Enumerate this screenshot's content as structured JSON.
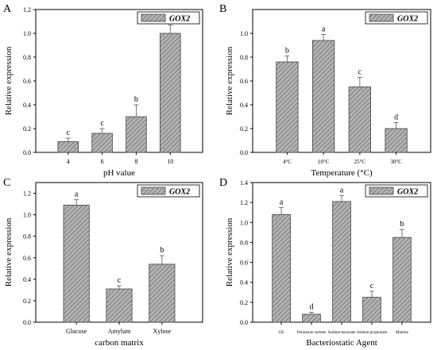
{
  "figure": {
    "panels": [
      "A",
      "B",
      "C",
      "D"
    ]
  },
  "colors": {
    "bar_fill": "#b4b4b4",
    "bar_stroke": "#444444",
    "hatch": "#6a6a6a",
    "axis": "#000000"
  },
  "chart_data": [
    {
      "panel": "A",
      "type": "bar",
      "categories": [
        "4",
        "6",
        "8",
        "10"
      ],
      "series": [
        {
          "name": "GOX2",
          "values": [
            0.09,
            0.16,
            0.3,
            1.0
          ]
        }
      ],
      "errors": [
        0.03,
        0.04,
        0.1,
        0.07
      ],
      "significance": [
        "c",
        "c",
        "b",
        "a"
      ],
      "xlabel": "pH value",
      "ylabel": "Relative expression",
      "ylim": [
        0,
        1.2
      ],
      "yticks": [
        "0.0",
        "0.2",
        "0.4",
        "0.6",
        "0.8",
        "1.0",
        "1.2"
      ],
      "legend": "top-right",
      "grid": false
    },
    {
      "panel": "B",
      "type": "bar",
      "categories": [
        "4°C",
        "10°C",
        "25°C",
        "30°C"
      ],
      "series": [
        {
          "name": "GOX2",
          "values": [
            0.76,
            0.94,
            0.55,
            0.2
          ]
        }
      ],
      "errors": [
        0.05,
        0.05,
        0.08,
        0.05
      ],
      "significance": [
        "b",
        "a",
        "c",
        "d"
      ],
      "xlabel": "Temperature (°C)",
      "ylabel": "Relative expression",
      "ylim": [
        0,
        1.2
      ],
      "yticks": [
        "0.0",
        "0.2",
        "0.4",
        "0.6",
        "0.8",
        "1.0"
      ],
      "legend": "top-right",
      "grid": false
    },
    {
      "panel": "C",
      "type": "bar",
      "categories": [
        "Glucose",
        "Amylum",
        "Xylose"
      ],
      "series": [
        {
          "name": "GOX2",
          "values": [
            1.09,
            0.31,
            0.54
          ]
        }
      ],
      "errors": [
        0.05,
        0.03,
        0.08
      ],
      "significance": [
        "a",
        "c",
        "b"
      ],
      "xlabel": "carbon matrix",
      "ylabel": "Relative expression",
      "ylim": [
        0,
        1.3
      ],
      "yticks": [
        "0.0",
        "0.2",
        "0.4",
        "0.6",
        "0.8",
        "1.0",
        "1.2"
      ],
      "legend": "top-right",
      "grid": false
    },
    {
      "panel": "D",
      "type": "bar",
      "categories": [
        "CK",
        "Potassium sorbate",
        "Sodium benzoate",
        "Sodium propionate",
        "Matrine"
      ],
      "series": [
        {
          "name": "GOX2",
          "values": [
            1.08,
            0.08,
            1.21,
            0.25,
            0.85
          ]
        }
      ],
      "errors": [
        0.07,
        0.02,
        0.06,
        0.06,
        0.08
      ],
      "significance": [
        "a",
        "d",
        "a",
        "c",
        "b"
      ],
      "xlabel": "Bacteriostatic Agent",
      "ylabel": "Relative expression",
      "ylim": [
        0,
        1.4
      ],
      "yticks": [
        "0.0",
        "0.2",
        "0.4",
        "0.6",
        "0.8",
        "1.0",
        "1.2",
        "1.4"
      ],
      "legend": "top-right",
      "grid": false
    }
  ]
}
